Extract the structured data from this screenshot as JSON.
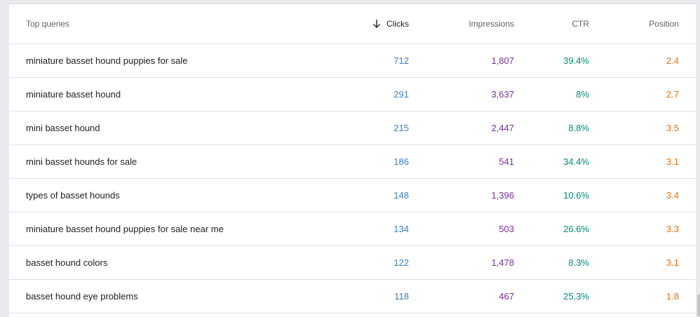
{
  "table": {
    "headers": {
      "query": "Top queries",
      "clicks": "Clicks",
      "impressions": "Impressions",
      "ctr": "CTR",
      "position": "Position"
    },
    "sort_icon": "arrow-down-icon",
    "colors": {
      "clicks": "#3a7fc1",
      "impressions": "#7b2f9e",
      "ctr": "#00897b",
      "position": "#e8710a"
    },
    "rows": [
      {
        "query": "miniature basset hound puppies for sale",
        "clicks": "712",
        "impressions": "1,807",
        "ctr": "39.4%",
        "position": "2.4"
      },
      {
        "query": "miniature basset hound",
        "clicks": "291",
        "impressions": "3,637",
        "ctr": "8%",
        "position": "2.7"
      },
      {
        "query": "mini basset hound",
        "clicks": "215",
        "impressions": "2,447",
        "ctr": "8.8%",
        "position": "3.5"
      },
      {
        "query": "mini basset hounds for sale",
        "clicks": "186",
        "impressions": "541",
        "ctr": "34.4%",
        "position": "3.1"
      },
      {
        "query": "types of basset hounds",
        "clicks": "148",
        "impressions": "1,396",
        "ctr": "10.6%",
        "position": "3.4"
      },
      {
        "query": "miniature basset hound puppies for sale near me",
        "clicks": "134",
        "impressions": "503",
        "ctr": "26.6%",
        "position": "3.3"
      },
      {
        "query": "basset hound colors",
        "clicks": "122",
        "impressions": "1,478",
        "ctr": "8.3%",
        "position": "3.1"
      },
      {
        "query": "basset hound eye problems",
        "clicks": "118",
        "impressions": "467",
        "ctr": "25.3%",
        "position": "1.8"
      }
    ]
  }
}
